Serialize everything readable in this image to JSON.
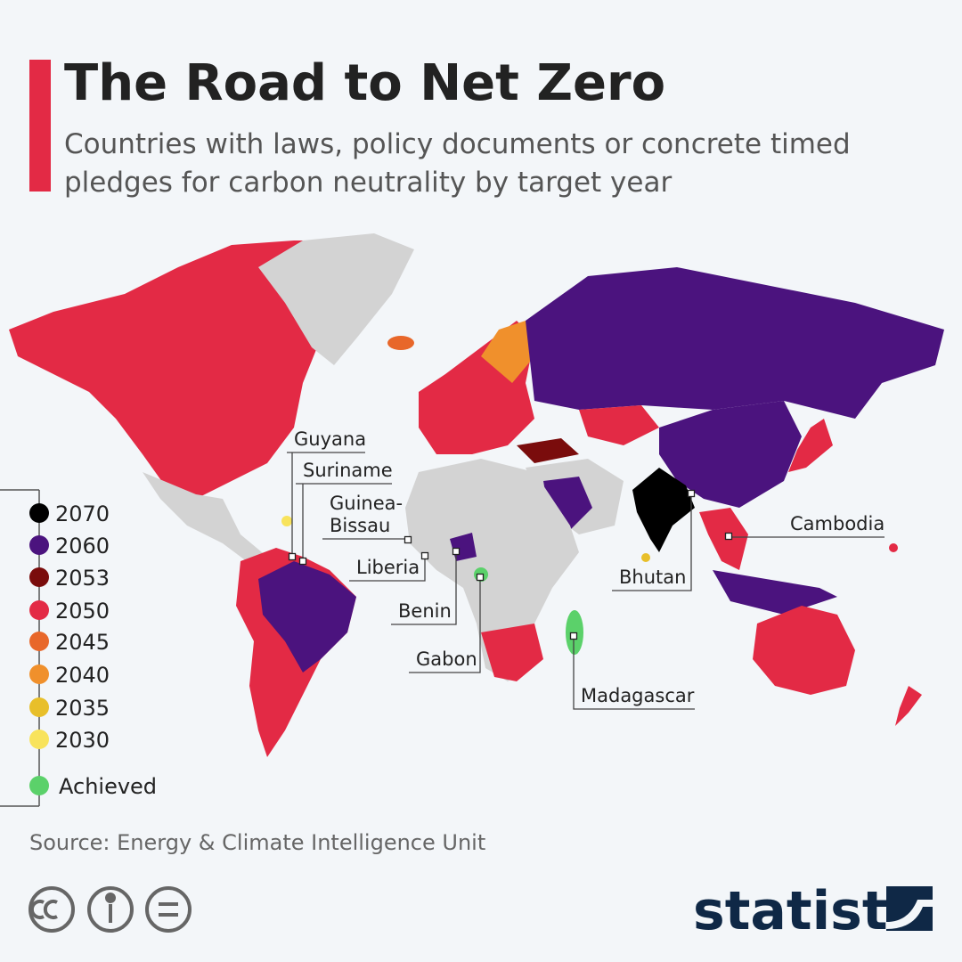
{
  "header": {
    "title": "The Road to Net Zero",
    "subtitle_lines": [
      "Countries with laws, policy documents or concrete timed",
      "pledges for carbon neutrality by target year"
    ]
  },
  "legend": [
    {
      "label": "2070",
      "color": "#000000"
    },
    {
      "label": "2060",
      "color": "#4b137e"
    },
    {
      "label": "2053",
      "color": "#7a0c0c"
    },
    {
      "label": "2050",
      "color": "#e32a45"
    },
    {
      "label": "2045",
      "color": "#e8672a"
    },
    {
      "label": "2040",
      "color": "#f0902c"
    },
    {
      "label": "2035",
      "color": "#e8bf2a"
    },
    {
      "label": "2030",
      "color": "#f8e35c"
    },
    {
      "label": "Achieved",
      "color": "#5bd16a"
    }
  ],
  "country_labels": [
    {
      "lines": [
        "Guyana"
      ]
    },
    {
      "lines": [
        "Suriname"
      ]
    },
    {
      "lines": [
        "Guinea-",
        "Bissau"
      ]
    },
    {
      "lines": [
        "Liberia"
      ]
    },
    {
      "lines": [
        "Benin"
      ]
    },
    {
      "lines": [
        "Gabon"
      ]
    },
    {
      "lines": [
        "Madagascar"
      ]
    },
    {
      "lines": [
        "Bhutan"
      ]
    },
    {
      "lines": [
        "Cambodia"
      ]
    }
  ],
  "footer": {
    "source": "Source: Energy & Climate Intelligence Unit",
    "brand": "statista"
  }
}
